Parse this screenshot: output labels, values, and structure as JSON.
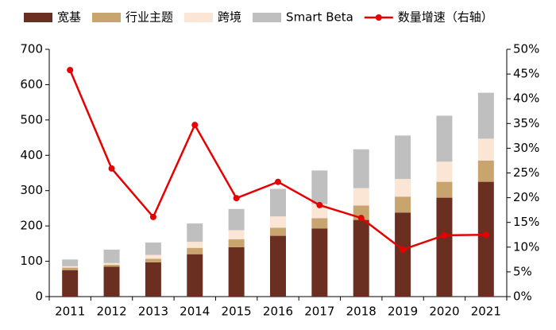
{
  "chart_data": {
    "type": "bar",
    "categories": [
      "2011",
      "2012",
      "2013",
      "2014",
      "2015",
      "2016",
      "2017",
      "2018",
      "2019",
      "2020",
      "2021"
    ],
    "series": [
      {
        "name": "宽基",
        "color": "#6b2f22",
        "values": [
          75,
          85,
          97,
          120,
          140,
          172,
          193,
          217,
          238,
          280,
          325
        ]
      },
      {
        "name": "行业主题",
        "color": "#c8a46e",
        "values": [
          7,
          5,
          10,
          18,
          22,
          23,
          29,
          41,
          45,
          45,
          60
        ]
      },
      {
        "name": "跨境",
        "color": "#fbe6d6",
        "values": [
          4,
          5,
          11,
          17,
          26,
          32,
          40,
          49,
          50,
          57,
          62
        ]
      },
      {
        "name": "Smart Beta",
        "color": "#bfbfbf",
        "values": [
          19,
          38,
          35,
          52,
          60,
          78,
          95,
          110,
          123,
          130,
          130
        ]
      },
      {
        "name": "数量增速（右轴）",
        "color": "#e60000",
        "type": "line",
        "axis": "y2",
        "values": [
          45.8,
          25.9,
          16.1,
          34.7,
          19.9,
          23.2,
          18.5,
          15.9,
          9.5,
          12.4,
          12.5
        ]
      }
    ],
    "ylim": [
      0,
      700
    ],
    "yticks": [
      0,
      100,
      200,
      300,
      400,
      500,
      600,
      700
    ],
    "y2lim": [
      0,
      50
    ],
    "y2ticks": [
      {
        "value": 0,
        "label": "0%"
      },
      {
        "value": 5,
        "label": "5%"
      },
      {
        "value": 10,
        "label": "10%"
      },
      {
        "value": 15,
        "label": "15%"
      },
      {
        "value": 20,
        "label": "20%"
      },
      {
        "value": 25,
        "label": "25%"
      },
      {
        "value": 30,
        "label": "30%"
      },
      {
        "value": 35,
        "label": "35%"
      },
      {
        "value": 40,
        "label": "40%"
      },
      {
        "value": 45,
        "label": "45%"
      },
      {
        "value": 50,
        "label": "50%"
      }
    ],
    "grid": false,
    "legend": "top"
  }
}
